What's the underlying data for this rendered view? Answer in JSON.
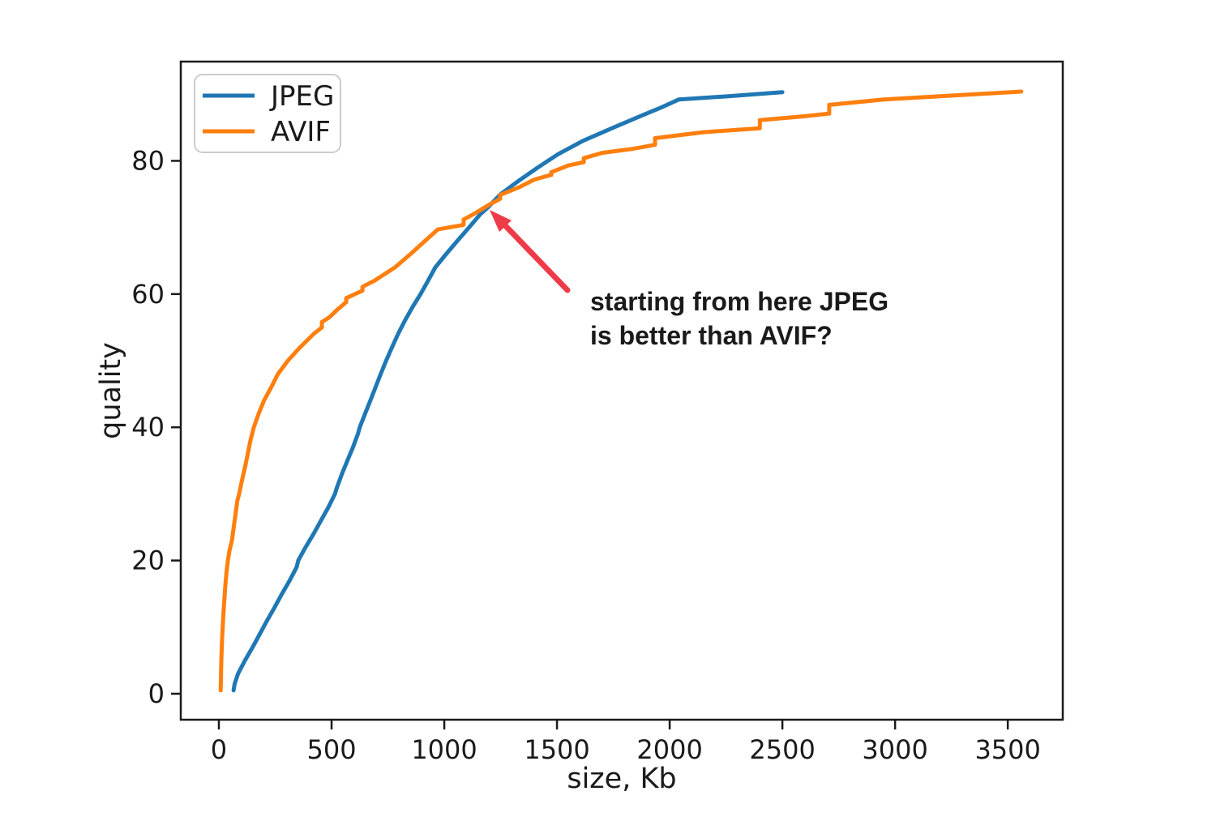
{
  "figure": {
    "background": "#ffffff"
  },
  "chart_data": {
    "type": "line",
    "title": "",
    "xlabel": "size, Kb",
    "ylabel": "quality",
    "xlim": [
      -169,
      3744
    ],
    "ylim": [
      -3.9,
      94.9
    ],
    "xticks": [
      0,
      500,
      1000,
      1500,
      2000,
      2500,
      3000,
      3500
    ],
    "yticks": [
      0,
      20,
      40,
      60,
      80
    ],
    "grid": false,
    "legend_position": "upper left",
    "series": [
      {
        "name": "JPEG",
        "color": "#1f77b4",
        "points": [
          [
            65,
            0.5
          ],
          [
            70,
            1.5
          ],
          [
            85,
            3
          ],
          [
            116,
            5
          ],
          [
            150,
            7
          ],
          [
            182,
            9
          ],
          [
            214,
            11
          ],
          [
            248,
            13
          ],
          [
            280,
            15
          ],
          [
            314,
            17
          ],
          [
            345,
            19
          ],
          [
            352,
            20
          ],
          [
            385,
            22
          ],
          [
            420,
            24
          ],
          [
            453,
            26
          ],
          [
            486,
            28
          ],
          [
            515,
            30
          ],
          [
            524,
            31
          ],
          [
            546,
            33
          ],
          [
            570,
            35
          ],
          [
            595,
            37
          ],
          [
            617,
            39
          ],
          [
            625,
            40
          ],
          [
            648,
            42
          ],
          [
            672,
            44
          ],
          [
            695,
            46
          ],
          [
            718,
            48
          ],
          [
            742,
            50
          ],
          [
            768,
            52
          ],
          [
            795,
            54
          ],
          [
            825,
            56
          ],
          [
            858,
            58
          ],
          [
            895,
            60
          ],
          [
            928,
            62
          ],
          [
            960,
            64
          ],
          [
            1008,
            66
          ],
          [
            1058,
            68
          ],
          [
            1110,
            70
          ],
          [
            1160,
            72
          ],
          [
            1193,
            73
          ],
          [
            1250,
            75
          ],
          [
            1330,
            77
          ],
          [
            1415,
            79
          ],
          [
            1505,
            81
          ],
          [
            1615,
            83
          ],
          [
            1750,
            85
          ],
          [
            1890,
            87
          ],
          [
            1962,
            88
          ],
          [
            2040,
            89.2
          ],
          [
            2260,
            89.7
          ],
          [
            2500,
            90.3
          ]
        ]
      },
      {
        "name": "AVIF",
        "color": "#ff7f0e",
        "points": [
          [
            8,
            0.5
          ],
          [
            9,
            2
          ],
          [
            10,
            4
          ],
          [
            12,
            6
          ],
          [
            14,
            8
          ],
          [
            17,
            10
          ],
          [
            20,
            12
          ],
          [
            24,
            14
          ],
          [
            28,
            16
          ],
          [
            33,
            18
          ],
          [
            40,
            20
          ],
          [
            47,
            21.5
          ],
          [
            58,
            23
          ],
          [
            66,
            25
          ],
          [
            74,
            27
          ],
          [
            82,
            29
          ],
          [
            90,
            30
          ],
          [
            102,
            32
          ],
          [
            116,
            34
          ],
          [
            128,
            36
          ],
          [
            140,
            38
          ],
          [
            155,
            40
          ],
          [
            176,
            42
          ],
          [
            200,
            44
          ],
          [
            232,
            46
          ],
          [
            262,
            48
          ],
          [
            306,
            50
          ],
          [
            360,
            52
          ],
          [
            420,
            54
          ],
          [
            457,
            55
          ],
          [
            457,
            55.8
          ],
          [
            490,
            56.5
          ],
          [
            520,
            57.5
          ],
          [
            565,
            58.8
          ],
          [
            565,
            59.4
          ],
          [
            610,
            60.1
          ],
          [
            637,
            60.5
          ],
          [
            637,
            61.1
          ],
          [
            690,
            62
          ],
          [
            735,
            63
          ],
          [
            781,
            64
          ],
          [
            850,
            66
          ],
          [
            915,
            68
          ],
          [
            971,
            69.7
          ],
          [
            1086,
            70.4
          ],
          [
            1086,
            71.2
          ],
          [
            1130,
            72
          ],
          [
            1198,
            73.4
          ],
          [
            1248,
            74.3
          ],
          [
            1248,
            74.9
          ],
          [
            1330,
            76
          ],
          [
            1400,
            77.2
          ],
          [
            1475,
            77.9
          ],
          [
            1475,
            78.3
          ],
          [
            1550,
            79.3
          ],
          [
            1619,
            79.8
          ],
          [
            1619,
            80.4
          ],
          [
            1700,
            81.2
          ],
          [
            1835,
            81.8
          ],
          [
            1935,
            82.4
          ],
          [
            1935,
            83.4
          ],
          [
            2150,
            84.3
          ],
          [
            2400,
            84.9
          ],
          [
            2400,
            86.1
          ],
          [
            2600,
            86.7
          ],
          [
            2708,
            87.1
          ],
          [
            2708,
            88.4
          ],
          [
            2950,
            89.2
          ],
          [
            3200,
            89.7
          ],
          [
            3560,
            90.4
          ]
        ]
      }
    ],
    "annotation": {
      "text_lines": [
        "starting from here JPEG",
        "is better than AVIF?"
      ],
      "color": "#ee3b49",
      "arrow_target_data": {
        "x": 1200,
        "y": 73
      }
    }
  }
}
